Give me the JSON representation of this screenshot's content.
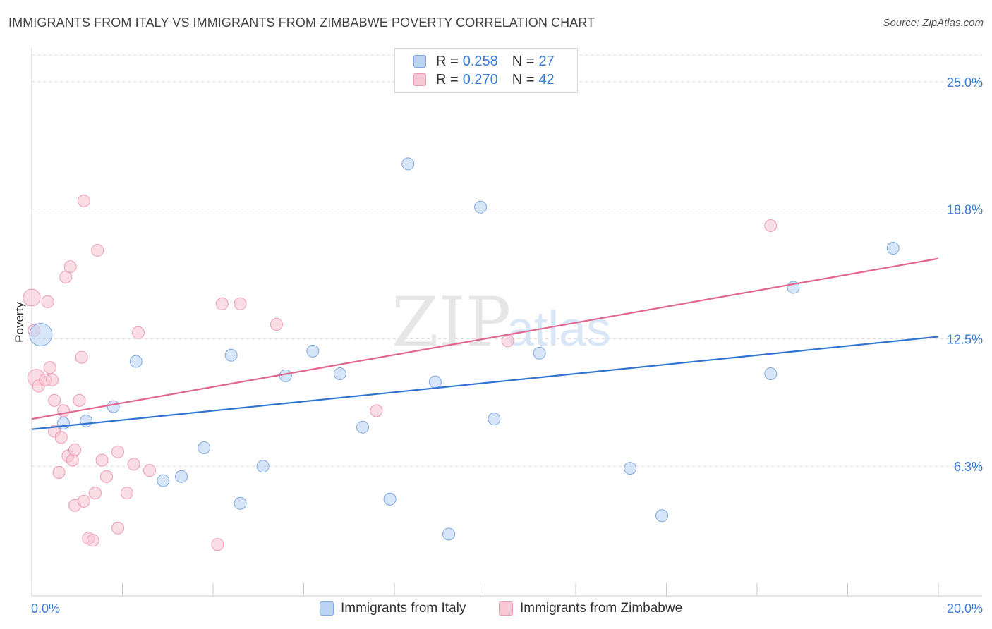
{
  "title": "IMMIGRANTS FROM ITALY VS IMMIGRANTS FROM ZIMBABWE POVERTY CORRELATION CHART",
  "source": "Source: ZipAtlas.com",
  "watermark": {
    "zip": "ZIP",
    "atlas": "atlas"
  },
  "legend": {
    "italy": {
      "r_label": "R =",
      "r_value": "0.258",
      "n_label": "N =",
      "n_value": "27"
    },
    "zimbabwe": {
      "r_label": "R =",
      "r_value": "0.270",
      "n_label": "N =",
      "n_value": "42"
    }
  },
  "bottom_legend": {
    "italy": "Immigrants from Italy",
    "zimbabwe": "Immigrants from Zimbabwe"
  },
  "colors": {
    "italy_fill": "#bcd4f4",
    "italy_stroke": "#7ea8e0",
    "italy_line": "#2f74d0",
    "zimbabwe_fill": "#f9c6d5",
    "zimbabwe_stroke": "#ee9ab4",
    "zimbabwe_line": "#e06690",
    "tick_label": "#3a7bd5",
    "grid": "#d8d8d8"
  },
  "chart_data": {
    "type": "scatter",
    "title": "IMMIGRANTS FROM ITALY VS IMMIGRANTS FROM ZIMBABWE POVERTY CORRELATION CHART",
    "xlabel": "",
    "ylabel": "Poverty",
    "xlim": [
      0,
      20
    ],
    "ylim": [
      0,
      26.5
    ],
    "x_tick_labels": [
      {
        "value": 0,
        "label": "0.0%"
      },
      {
        "value": 20,
        "label": "20.0%"
      }
    ],
    "y_tick_labels": [
      {
        "value": 6.3,
        "label": "6.3%"
      },
      {
        "value": 12.5,
        "label": "12.5%"
      },
      {
        "value": 18.8,
        "label": "18.8%"
      },
      {
        "value": 25.0,
        "label": "25.0%"
      }
    ],
    "series": [
      {
        "name": "Immigrants from Italy",
        "points": [
          {
            "x": 0.2,
            "y": 12.7,
            "big": true
          },
          {
            "x": 0.7,
            "y": 8.4
          },
          {
            "x": 1.2,
            "y": 8.5
          },
          {
            "x": 1.8,
            "y": 9.2
          },
          {
            "x": 2.3,
            "y": 11.4
          },
          {
            "x": 2.9,
            "y": 5.6
          },
          {
            "x": 3.3,
            "y": 5.8
          },
          {
            "x": 3.8,
            "y": 7.2
          },
          {
            "x": 4.4,
            "y": 11.7
          },
          {
            "x": 4.6,
            "y": 4.5
          },
          {
            "x": 5.1,
            "y": 6.3
          },
          {
            "x": 5.6,
            "y": 10.7
          },
          {
            "x": 6.2,
            "y": 11.9
          },
          {
            "x": 6.8,
            "y": 10.8
          },
          {
            "x": 7.3,
            "y": 8.2
          },
          {
            "x": 7.9,
            "y": 4.7
          },
          {
            "x": 8.3,
            "y": 21.0
          },
          {
            "x": 8.9,
            "y": 10.4
          },
          {
            "x": 9.2,
            "y": 3.0
          },
          {
            "x": 9.9,
            "y": 18.9
          },
          {
            "x": 10.2,
            "y": 8.6
          },
          {
            "x": 11.2,
            "y": 11.8
          },
          {
            "x": 13.2,
            "y": 6.2
          },
          {
            "x": 13.9,
            "y": 3.9
          },
          {
            "x": 16.3,
            "y": 10.8
          },
          {
            "x": 16.8,
            "y": 15.0
          },
          {
            "x": 19.0,
            "y": 16.9
          }
        ],
        "trend": {
          "x": [
            0,
            20
          ],
          "y": [
            8.1,
            12.6
          ]
        }
      },
      {
        "name": "Immigrants from Zimbabwe",
        "points": [
          {
            "x": 0.0,
            "y": 14.5,
            "big": true
          },
          {
            "x": 0.1,
            "y": 10.6,
            "big": true
          },
          {
            "x": 0.15,
            "y": 10.2
          },
          {
            "x": 0.3,
            "y": 10.5
          },
          {
            "x": 0.35,
            "y": 14.3
          },
          {
            "x": 0.4,
            "y": 11.1
          },
          {
            "x": 0.45,
            "y": 10.5
          },
          {
            "x": 0.5,
            "y": 8.0
          },
          {
            "x": 0.5,
            "y": 9.5
          },
          {
            "x": 0.6,
            "y": 6.0
          },
          {
            "x": 0.65,
            "y": 7.7
          },
          {
            "x": 0.7,
            "y": 9.0
          },
          {
            "x": 0.75,
            "y": 15.5
          },
          {
            "x": 0.8,
            "y": 6.8
          },
          {
            "x": 0.85,
            "y": 16.0
          },
          {
            "x": 0.9,
            "y": 6.6
          },
          {
            "x": 0.95,
            "y": 7.1
          },
          {
            "x": 0.95,
            "y": 4.4
          },
          {
            "x": 1.05,
            "y": 9.5
          },
          {
            "x": 1.1,
            "y": 11.6
          },
          {
            "x": 1.15,
            "y": 4.6
          },
          {
            "x": 1.15,
            "y": 19.2
          },
          {
            "x": 1.25,
            "y": 2.8
          },
          {
            "x": 1.35,
            "y": 2.7
          },
          {
            "x": 1.4,
            "y": 5.0
          },
          {
            "x": 1.45,
            "y": 16.8
          },
          {
            "x": 1.55,
            "y": 6.6
          },
          {
            "x": 1.65,
            "y": 5.8
          },
          {
            "x": 1.9,
            "y": 7.0
          },
          {
            "x": 1.9,
            "y": 3.3
          },
          {
            "x": 2.1,
            "y": 5.0
          },
          {
            "x": 2.25,
            "y": 6.4
          },
          {
            "x": 2.35,
            "y": 12.8
          },
          {
            "x": 2.6,
            "y": 6.1
          },
          {
            "x": 4.1,
            "y": 2.5
          },
          {
            "x": 4.2,
            "y": 14.2
          },
          {
            "x": 4.6,
            "y": 14.2
          },
          {
            "x": 5.4,
            "y": 13.2
          },
          {
            "x": 7.6,
            "y": 9.0
          },
          {
            "x": 10.5,
            "y": 12.4
          },
          {
            "x": 16.3,
            "y": 18.0
          },
          {
            "x": 0.05,
            "y": 12.9
          }
        ],
        "trend": {
          "x": [
            0,
            20
          ],
          "y": [
            8.6,
            16.4
          ]
        }
      }
    ],
    "legend": "top-center",
    "grid": true
  }
}
